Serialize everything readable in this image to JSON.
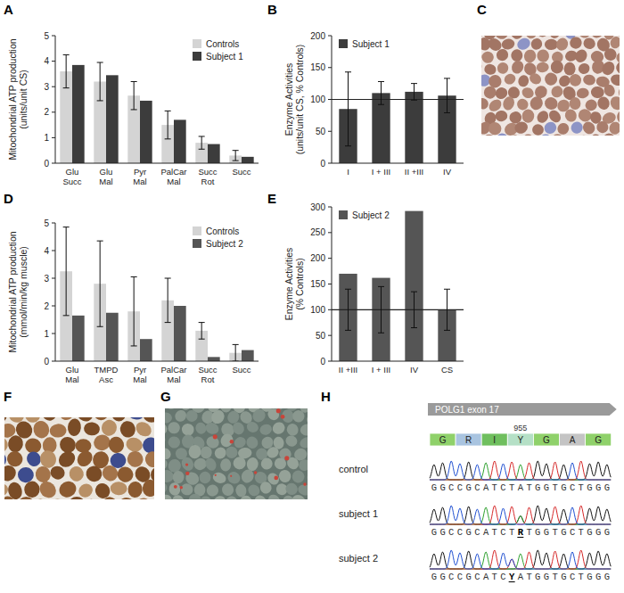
{
  "chart_data": [
    {
      "type": "bar",
      "panel": "A",
      "y_label": "Mitochondrial ATP production\n(units/unit CS)",
      "categories": [
        "Glu\nSucc",
        "Glu\nMal",
        "Pyr\nMal",
        "PalCar\nMal",
        "Succ\nRot",
        "Succ"
      ],
      "series": [
        {
          "name": "Controls",
          "color": "#d4d4d4",
          "values": [
            3.6,
            3.2,
            2.65,
            1.5,
            0.8,
            0.3
          ],
          "errors": [
            0.65,
            0.75,
            0.55,
            0.55,
            0.25,
            0.2
          ]
        },
        {
          "name": "Subject 1",
          "color": "#3c3c3c",
          "values": [
            3.85,
            3.45,
            2.45,
            1.7,
            0.75,
            0.25
          ]
        }
      ],
      "ylim": [
        0,
        5
      ],
      "yticks": [
        0,
        1,
        2,
        3,
        4,
        5
      ],
      "legend": "upper right"
    },
    {
      "type": "bar",
      "panel": "B",
      "y_label": "Enzyme Activities\n(units/unit CS, % Controls)",
      "categories": [
        "I",
        "I + III",
        "II +III",
        "IV"
      ],
      "series": [
        {
          "name": "Subject 1",
          "color": "#3c3c3c",
          "values": [
            85,
            110,
            112,
            106
          ],
          "errors": [
            58,
            18,
            13,
            27
          ]
        }
      ],
      "reference_line": 100,
      "ylim": [
        0,
        200
      ],
      "yticks": [
        0,
        50,
        100,
        150,
        200
      ],
      "legend": "upper left"
    },
    {
      "type": "bar",
      "panel": "D",
      "y_label": "Mitochondrial ATP production\n(mmol/min/kg muscle)",
      "categories": [
        "Glu\nMal",
        "TMPD\nAsc",
        "Pyr\nMal",
        "PalCar\nMal",
        "Succ\nRot",
        "Succ"
      ],
      "series": [
        {
          "name": "Controls",
          "color": "#d4d4d4",
          "values": [
            3.25,
            2.8,
            1.8,
            2.2,
            1.1,
            0.3
          ],
          "errors": [
            1.6,
            1.55,
            1.25,
            0.8,
            0.3,
            0.3
          ]
        },
        {
          "name": "Subject 2",
          "color": "#555555",
          "values": [
            1.65,
            1.75,
            0.8,
            2.0,
            0.15,
            0.4
          ]
        }
      ],
      "ylim": [
        0,
        5
      ],
      "yticks": [
        0,
        1,
        2,
        3,
        4,
        5
      ],
      "legend": "upper right"
    },
    {
      "type": "bar",
      "panel": "E",
      "y_label": "Enzyme Activities\n(% Controls)",
      "categories": [
        "II +III",
        "I + III",
        "IV",
        "CS"
      ],
      "series": [
        {
          "name": "Subject 2",
          "color": "#555555",
          "values": [
            170,
            162,
            292,
            100
          ]
        }
      ],
      "reference_line": 100,
      "reference_errors": [
        40,
        45,
        35,
        40
      ],
      "ylim": [
        0,
        300
      ],
      "yticks": [
        0,
        50,
        100,
        150,
        200,
        250,
        300
      ],
      "legend": "upper left"
    }
  ],
  "images": [
    {
      "panel": "C"
    },
    {
      "panel": "F"
    },
    {
      "panel": "G"
    }
  ],
  "sequence_panel": {
    "panel": "H",
    "exon": "POLG1 exon 17",
    "amino_acids": [
      "G",
      "R",
      "I",
      "Y",
      "G",
      "A",
      "G"
    ],
    "residue_number": 955,
    "rows": [
      {
        "label": "control",
        "sequence": "GGCCGCATCTATGGTGCTGGG"
      },
      {
        "label": "subject 1",
        "sequence": "GGCCGCATCTRTGGTGCTGGG"
      },
      {
        "label": "subject 2",
        "sequence": "GGCCGCATCYATGGTGCTGGG"
      }
    ]
  }
}
